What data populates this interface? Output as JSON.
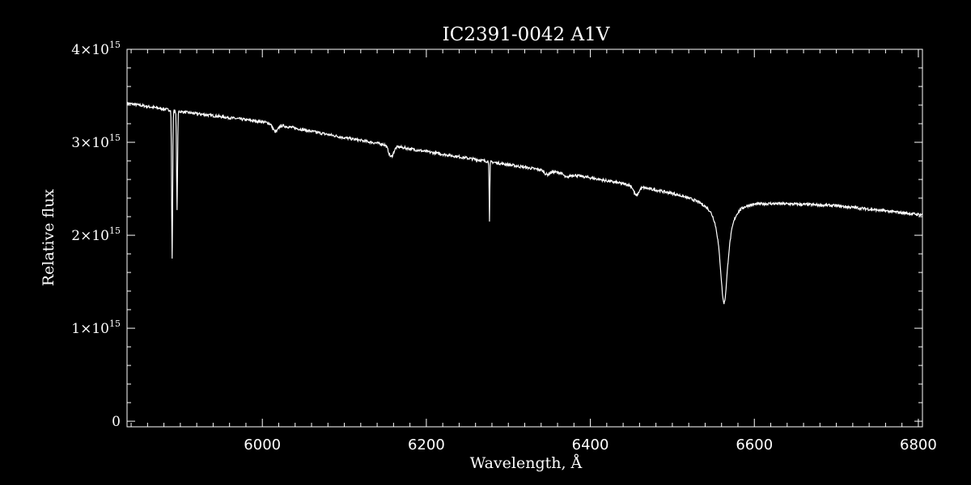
{
  "chart_data": {
    "type": "line",
    "title": "IC2391-0042  A1V",
    "xlabel": "Wavelength, Å",
    "ylabel": "Relative flux",
    "xlim": [
      5835,
      6805
    ],
    "ylim": [
      -60000000000000.0,
      4000000000000000.0
    ],
    "x_ticks": [
      6000,
      6200,
      6400,
      6600,
      6800
    ],
    "x_tick_labels": [
      "6000",
      "6200",
      "6400",
      "6600",
      "6800"
    ],
    "y_ticks": [
      {
        "value": 0,
        "label": "0",
        "exp": ""
      },
      {
        "value": 1000000000000000.0,
        "label": "1×10",
        "exp": "15"
      },
      {
        "value": 2000000000000000.0,
        "label": "2×10",
        "exp": "15"
      },
      {
        "value": 3000000000000000.0,
        "label": "3×10",
        "exp": "15"
      },
      {
        "value": 4000000000000000.0,
        "label": "4×10",
        "exp": "15"
      }
    ],
    "grid": false,
    "series": [
      {
        "continuum": [
          [
            5835,
            3420000000000000.0
          ],
          [
            5900,
            3330000000000000.0
          ],
          [
            6000,
            3220000000000000.0
          ],
          [
            6100,
            3050000000000000.0
          ],
          [
            6200,
            2900000000000000.0
          ],
          [
            6300,
            2760000000000000.0
          ],
          [
            6400,
            2620000000000000.0
          ],
          [
            6500,
            2460000000000000.0
          ],
          [
            6540,
            2380000000000000.0
          ],
          [
            6600,
            2360000000000000.0
          ],
          [
            6700,
            2320000000000000.0
          ],
          [
            6805,
            2220000000000000.0
          ]
        ],
        "absorption_lines": [
          {
            "center": 5890,
            "depth": 1600000000000000.0,
            "width": 0.6
          },
          {
            "center": 5896,
            "depth": 1050000000000000.0,
            "width": 0.6
          },
          {
            "center": 6016,
            "depth": 80000000000000.0,
            "width": 3
          },
          {
            "center": 6157,
            "depth": 120000000000000.0,
            "width": 3
          },
          {
            "center": 6277,
            "depth": 650000000000000.0,
            "width": 0.4
          },
          {
            "center": 6347,
            "depth": 40000000000000.0,
            "width": 3
          },
          {
            "center": 6371,
            "depth": 40000000000000.0,
            "width": 3
          },
          {
            "center": 6456,
            "depth": 100000000000000.0,
            "width": 3
          },
          {
            "center": 6563,
            "depth": 1100000000000000.0,
            "width": 6
          }
        ]
      }
    ]
  }
}
